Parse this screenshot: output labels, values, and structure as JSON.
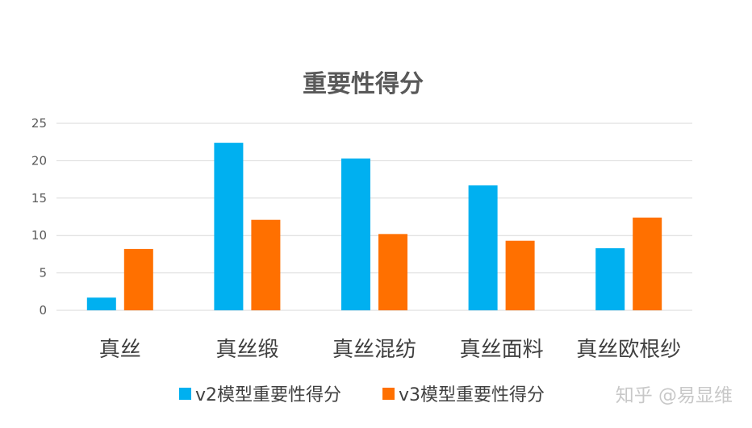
{
  "chart_data": {
    "type": "bar",
    "title": "重要性得分",
    "categories": [
      "真丝",
      "真丝缎",
      "真丝混纺",
      "真丝面料",
      "真丝欧根纱"
    ],
    "series": [
      {
        "name": "v2模型重要性得分",
        "color": "#00B0F0",
        "values": [
          1.7,
          22.4,
          20.3,
          16.7,
          8.3
        ]
      },
      {
        "name": "v3模型重要性得分",
        "color": "#FF7000",
        "values": [
          8.2,
          12.1,
          10.2,
          9.3,
          12.4
        ]
      }
    ],
    "ylim": [
      0,
      25
    ],
    "yticks": [
      0,
      5,
      10,
      15,
      20,
      25
    ],
    "grid": true,
    "legend_position": "bottom"
  },
  "watermark": "知乎 @易显维"
}
